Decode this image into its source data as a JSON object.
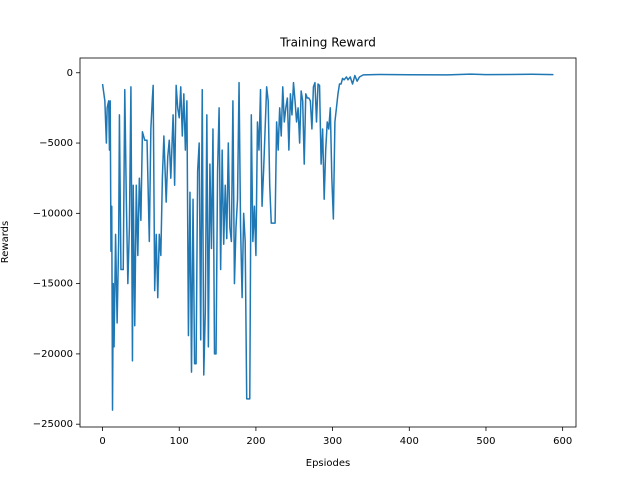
{
  "chart_data": {
    "type": "line",
    "title": "Training Reward",
    "x_label": "Epsiodes",
    "y_label": "Rewards",
    "series": [
      {
        "name": "Rewards",
        "color": "#1f77b4",
        "x": [
          0,
          3,
          5,
          6,
          8,
          9,
          10,
          11,
          12,
          13,
          14,
          15,
          17,
          19,
          21,
          22,
          24,
          27,
          29,
          31,
          33,
          35,
          37,
          39,
          40,
          42,
          44,
          46,
          48,
          50,
          52,
          55,
          58,
          61,
          63,
          65,
          66,
          68,
          70,
          72,
          74,
          76,
          78,
          80,
          83,
          85,
          87,
          89,
          92,
          94,
          96,
          98,
          100,
          102,
          104,
          106,
          108,
          110,
          112,
          114,
          116,
          118,
          120,
          122,
          124,
          126,
          128,
          130,
          132,
          134,
          136,
          138,
          140,
          142,
          144,
          146,
          148,
          150,
          152,
          154,
          156,
          158,
          160,
          162,
          164,
          166,
          168,
          170,
          172,
          174,
          176,
          178,
          180,
          182,
          184,
          186,
          188,
          192,
          194,
          196,
          198,
          200,
          202,
          204,
          206,
          208,
          210,
          212,
          214,
          216,
          218,
          220,
          225,
          227,
          229,
          231,
          233,
          235,
          237,
          239,
          241,
          243,
          245,
          247,
          249,
          251,
          253,
          255,
          257,
          259,
          261,
          263,
          265,
          267,
          269,
          271,
          273,
          275,
          277,
          279,
          281,
          283,
          285,
          287,
          289,
          291,
          293,
          295,
          297,
          299,
          301,
          303,
          305,
          307,
          309,
          311,
          313,
          315,
          318,
          320,
          323,
          326,
          329,
          332,
          335,
          340,
          360,
          400,
          450,
          480,
          500,
          530,
          560,
          588
        ],
        "values": [
          -800,
          -2000,
          -5000,
          -2500,
          -2000,
          -5500,
          -2000,
          -12700,
          -9500,
          -24000,
          -15000,
          -19500,
          -11500,
          -17800,
          -12000,
          -3000,
          -14000,
          -14000,
          -1200,
          -9000,
          -15000,
          -11000,
          -1000,
          -20500,
          -8000,
          -18000,
          -8000,
          -13000,
          -7500,
          -10500,
          -4200,
          -4800,
          -4800,
          -12000,
          -4000,
          -1800,
          -900,
          -15500,
          -11500,
          -16000,
          -11500,
          -13000,
          -7500,
          -4500,
          -9200,
          -6000,
          -4800,
          -7500,
          -3000,
          -8000,
          -900,
          -2500,
          -3200,
          -1000,
          -4500,
          -1500,
          -5500,
          -2000,
          -18700,
          -8500,
          -21300,
          -9000,
          -20700,
          -20700,
          -7000,
          -5000,
          -19000,
          -1200,
          -21500,
          -17000,
          -3000,
          -19500,
          -6500,
          -12500,
          -4000,
          -20000,
          -20000,
          -7000,
          -2500,
          -14000,
          -5500,
          -12200,
          -8000,
          -11800,
          -5000,
          -11000,
          -12000,
          -2000,
          -15000,
          -11000,
          -9000,
          -700,
          -11000,
          -16000,
          -10000,
          -12000,
          -23200,
          -23200,
          -3000,
          -12000,
          -9500,
          -13000,
          -3500,
          -5500,
          -1200,
          -9500,
          -7000,
          -4000,
          -1000,
          -2000,
          -8000,
          -10700,
          -10700,
          -3500,
          -5500,
          -2500,
          -4500,
          -1000,
          -3500,
          -2500,
          -1800,
          -5500,
          -1500,
          -3000,
          -700,
          -2000,
          -3500,
          -2500,
          -5000,
          -1300,
          -2000,
          -6500,
          -1500,
          -1800,
          -1800,
          -2000,
          -4000,
          -1000,
          -700,
          -3500,
          -800,
          -900,
          -6500,
          -4000,
          -9000,
          -5500,
          -3500,
          -4000,
          -2500,
          -7500,
          -10400,
          -3500,
          -2500,
          -1500,
          -800,
          -800,
          -400,
          -500,
          -300,
          -500,
          -300,
          -800,
          -200,
          -600,
          -300,
          -150,
          -120,
          -140,
          -150,
          -100,
          -130,
          -120,
          -110,
          -130
        ]
      }
    ],
    "xlim": [
      -29.4,
      617.4
    ],
    "ylim": [
      -25200,
      1050
    ],
    "xticks": [
      0,
      100,
      200,
      300,
      400,
      500,
      600
    ],
    "yticks": [
      0,
      {
        "value": -5000,
        "label": "−5000"
      },
      {
        "value": -10000,
        "label": "−10000"
      },
      {
        "value": -15000,
        "label": "−15000"
      },
      {
        "value": -20000,
        "label": "−20000"
      },
      {
        "value": -25000,
        "label": "−25000"
      }
    ]
  }
}
